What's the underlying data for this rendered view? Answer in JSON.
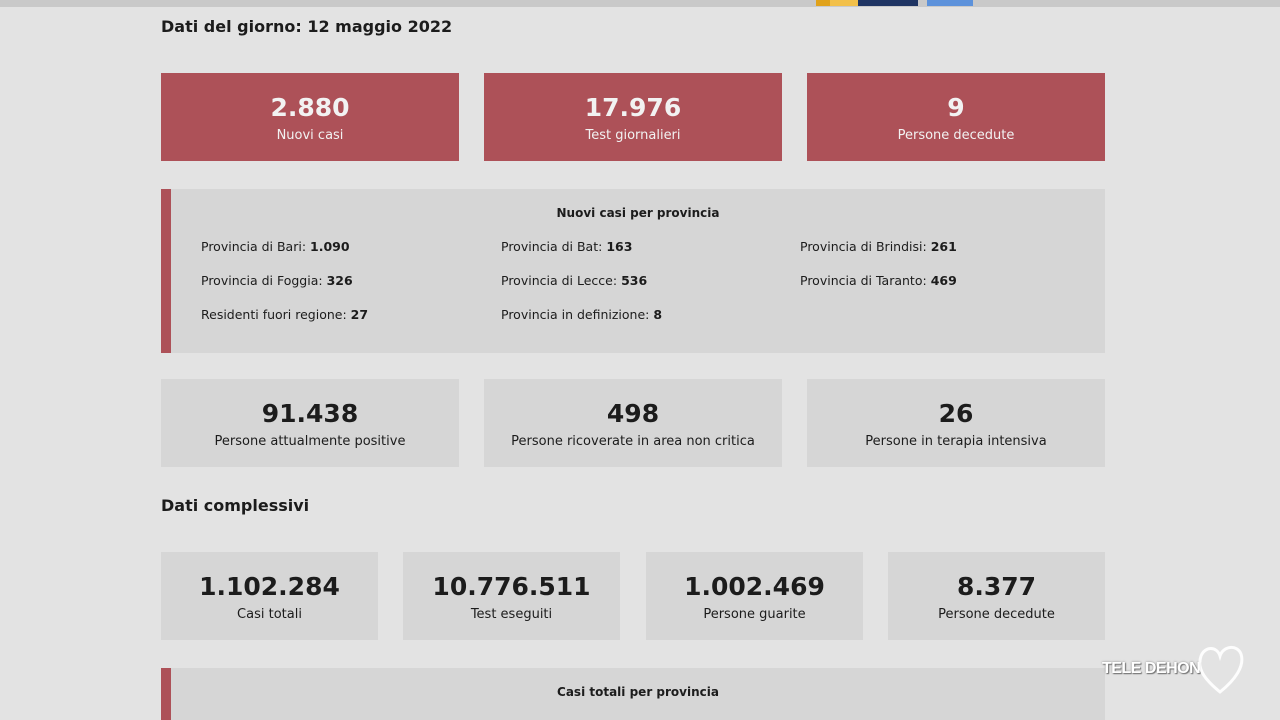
{
  "daily": {
    "title": "Dati del giorno: 12 maggio 2022",
    "cards": [
      {
        "value": "2.880",
        "label": "Nuovi casi"
      },
      {
        "value": "17.976",
        "label": "Test giornalieri"
      },
      {
        "value": "9",
        "label": "Persone decedute"
      }
    ],
    "province_box": {
      "title": "Nuovi casi per provincia",
      "items": [
        {
          "label": "Provincia di Bari:",
          "value": "1.090"
        },
        {
          "label": "Provincia di Bat:",
          "value": "163"
        },
        {
          "label": "Provincia di Brindisi:",
          "value": "261"
        },
        {
          "label": "Provincia di Foggia:",
          "value": "326"
        },
        {
          "label": "Provincia di Lecce:",
          "value": "536"
        },
        {
          "label": "Provincia di Taranto:",
          "value": "469"
        },
        {
          "label": "Residenti fuori regione:",
          "value": "27"
        },
        {
          "label": "Provincia in definizione:",
          "value": "8"
        }
      ]
    },
    "status_cards": [
      {
        "value": "91.438",
        "label": "Persone attualmente positive"
      },
      {
        "value": "498",
        "label": "Persone ricoverate in area non critica"
      },
      {
        "value": "26",
        "label": "Persone in terapia intensiva"
      }
    ]
  },
  "overall": {
    "title": "Dati complessivi",
    "cards": [
      {
        "value": "1.102.284",
        "label": "Casi totali"
      },
      {
        "value": "10.776.511",
        "label": "Test eseguiti"
      },
      {
        "value": "1.002.469",
        "label": "Persone guarite"
      },
      {
        "value": "8.377",
        "label": "Persone decedute"
      }
    ],
    "province_box": {
      "title": "Casi totali per provincia"
    }
  },
  "watermark": {
    "text": "TELE DEHON",
    "icon": "heart-outline-icon"
  },
  "colors": {
    "accent_red": "#ad5158",
    "card_grey": "#d6d6d6",
    "background": "#e3e3e3"
  }
}
